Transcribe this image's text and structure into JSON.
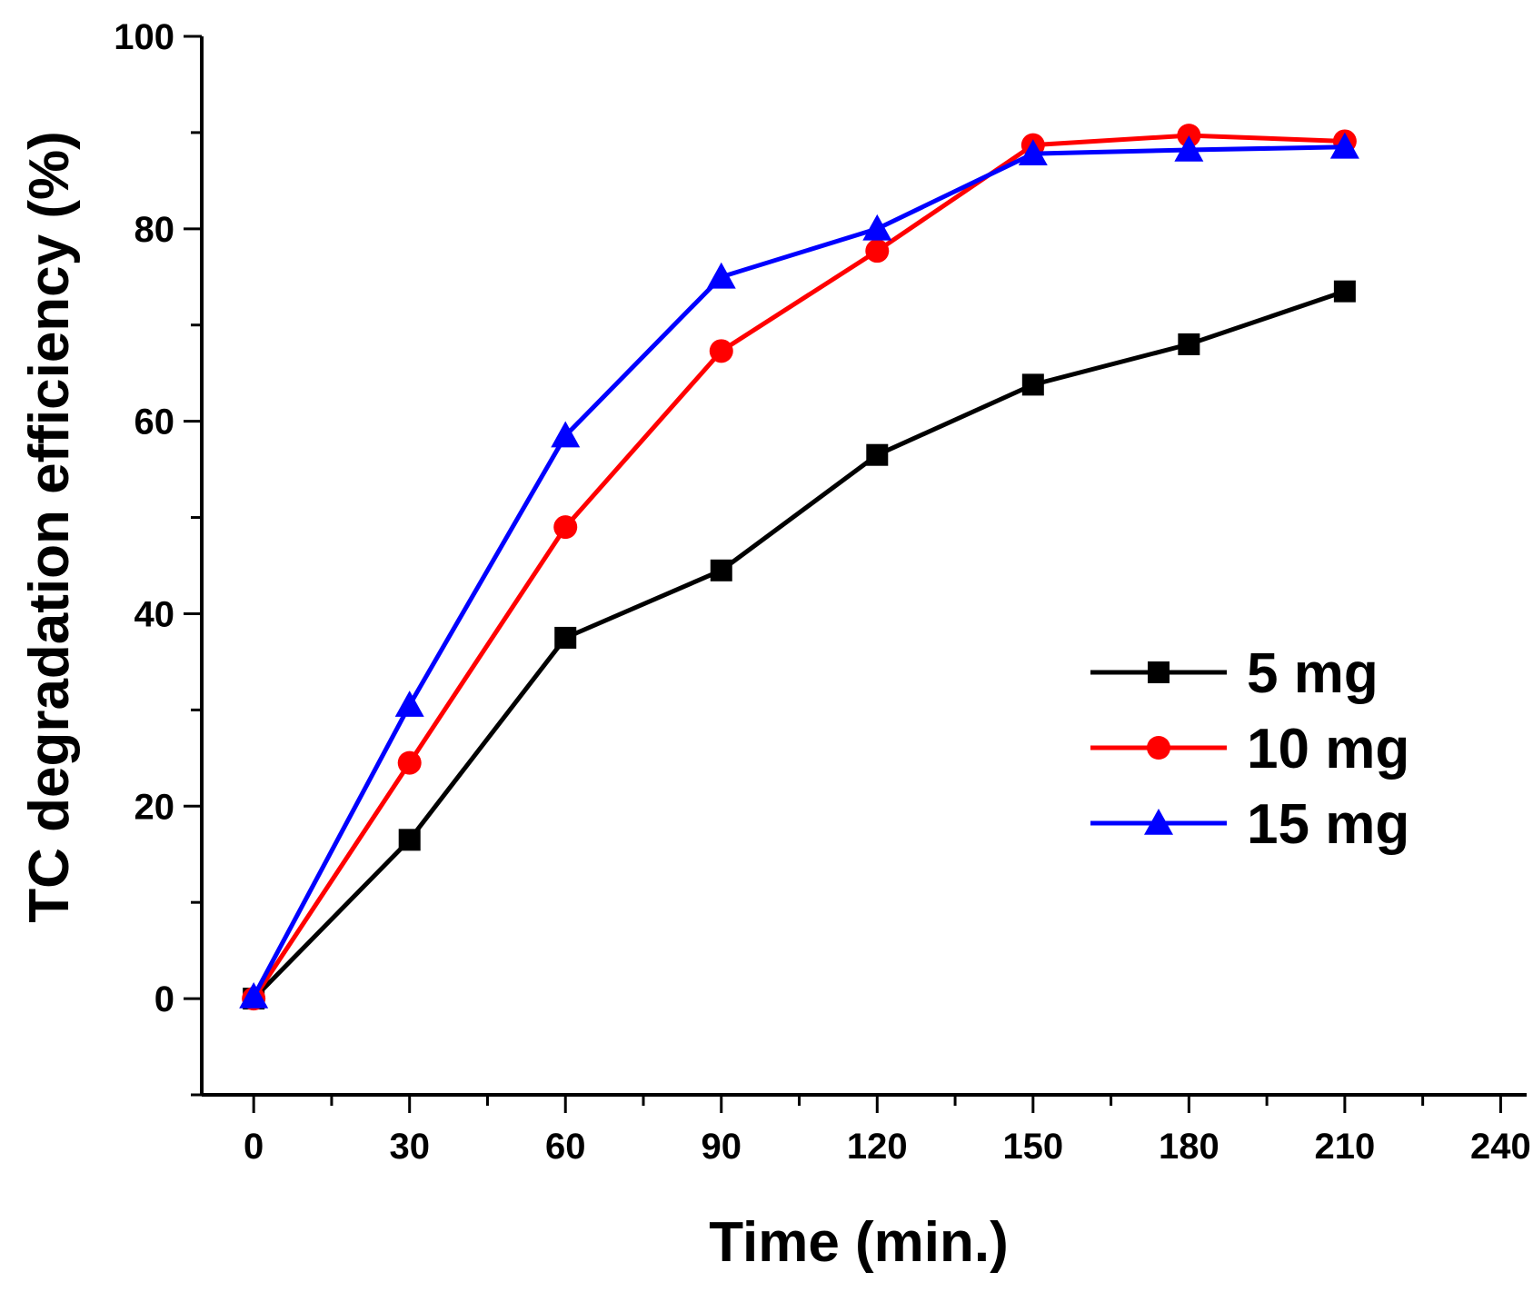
{
  "chart_data": {
    "type": "line",
    "title": "",
    "xlabel": "Time (min.)",
    "ylabel": "TC degradation efficiency (%)",
    "xlim": [
      -10,
      245
    ],
    "ylim": [
      -10,
      100
    ],
    "xticks": [
      "0",
      "30",
      "60",
      "90",
      "120",
      "150",
      "180",
      "210",
      "240"
    ],
    "yticks": [
      "0",
      "20",
      "40",
      "60",
      "80",
      "100"
    ],
    "grid": false,
    "legend_position": "right",
    "x": [
      0,
      30,
      60,
      90,
      120,
      150,
      180,
      210
    ],
    "series": [
      {
        "name": "5 mg",
        "color": "#000000",
        "marker": "square",
        "values": [
          0,
          16.5,
          37.5,
          44.5,
          56.5,
          63.8,
          68.0,
          73.5
        ]
      },
      {
        "name": "10 mg",
        "color": "#ff0000",
        "marker": "circle",
        "values": [
          0,
          24.5,
          49.0,
          67.3,
          77.7,
          88.7,
          89.7,
          89.1
        ]
      },
      {
        "name": "15 mg",
        "color": "#0000ff",
        "marker": "triangle",
        "values": [
          0.2,
          30.5,
          58.5,
          75.0,
          80.0,
          87.8,
          88.2,
          88.5
        ]
      }
    ]
  }
}
